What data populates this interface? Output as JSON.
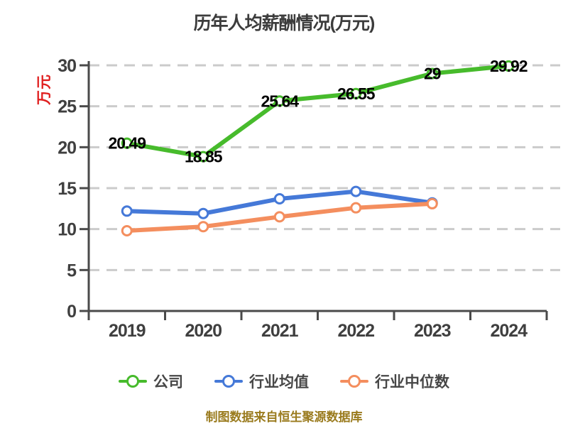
{
  "chart_data": {
    "type": "line",
    "title": "历年人均薪酬情况(万元)",
    "ylabel": "万元",
    "xlabel": "",
    "categories": [
      "2019",
      "2020",
      "2021",
      "2022",
      "2023",
      "2024"
    ],
    "series": [
      {
        "name": "公司",
        "color": "#47BB2C",
        "values": [
          20.49,
          18.85,
          25.64,
          26.55,
          29,
          29.92
        ],
        "labels": [
          "20.49",
          "18.85",
          "25.64",
          "26.55",
          "29",
          "29.92"
        ]
      },
      {
        "name": "行业均值",
        "color": "#4579D8",
        "values": [
          12.2,
          11.9,
          13.7,
          14.6,
          13.2,
          null
        ]
      },
      {
        "name": "行业中位数",
        "color": "#F48E5E",
        "values": [
          9.8,
          10.3,
          11.5,
          12.6,
          13.1,
          null
        ]
      }
    ],
    "ylim": [
      0,
      30
    ],
    "ytick_step": 5,
    "grid": "dashed-horizontal",
    "legend_position": "bottom"
  },
  "footer": {
    "note": "制图数据来自恒生聚源数据库"
  },
  "colors": {
    "title": "#3c3c3c",
    "ylabel": "#e02020",
    "axis": "#4a4a4a",
    "grid": "#cbcbcb",
    "tick_text": "#3f3f3f",
    "data_label": "#000000",
    "legend_text": "#474747",
    "footer": "#9a7b1e"
  }
}
